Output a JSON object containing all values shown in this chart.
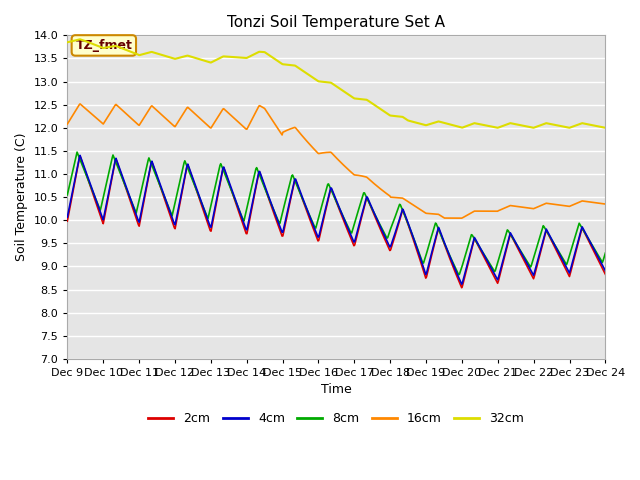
{
  "title": "Tonzi Soil Temperature Set A",
  "xlabel": "Time",
  "ylabel": "Soil Temperature (C)",
  "ylim": [
    7.0,
    14.0
  ],
  "yticks": [
    7.0,
    7.5,
    8.0,
    8.5,
    9.0,
    9.5,
    10.0,
    10.5,
    11.0,
    11.5,
    12.0,
    12.5,
    13.0,
    13.5,
    14.0
  ],
  "xtick_labels": [
    "Dec 9",
    "Dec 10",
    "Dec 11",
    "Dec 12",
    "Dec 13",
    "Dec 14",
    "Dec 15",
    "Dec 16",
    "Dec 17",
    "Dec 18",
    "Dec 19",
    "Dec 20",
    "Dec 21",
    "Dec 22",
    "Dec 23",
    "Dec 24"
  ],
  "colors": {
    "2cm": "#dd0000",
    "4cm": "#0000cc",
    "8cm": "#00aa00",
    "16cm": "#ff8800",
    "32cm": "#dddd00"
  },
  "legend_labels": [
    "2cm",
    "4cm",
    "8cm",
    "16cm",
    "32cm"
  ],
  "annotation_text": "TZ_fmet",
  "annotation_bg": "#ffffcc",
  "annotation_border": "#cc8800",
  "bg_color": "#e5e5e5",
  "grid_color": "#ffffff"
}
